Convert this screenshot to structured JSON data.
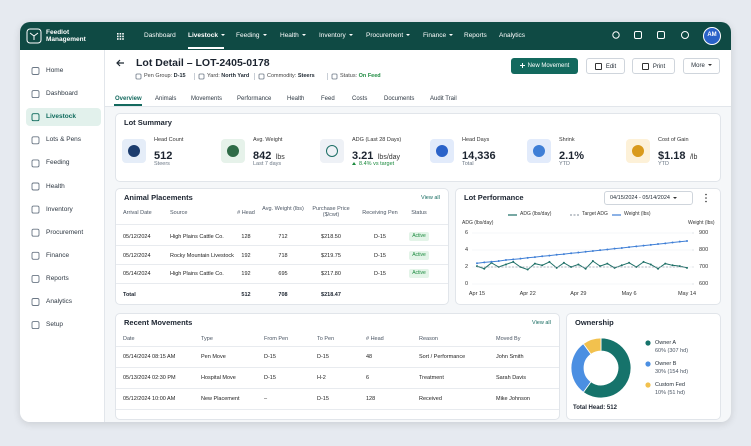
{
  "brand": "Feedlot Management",
  "top_nav": {
    "items": [
      {
        "label": "Dashboard",
        "dropdown": false
      },
      {
        "label": "Livestock",
        "dropdown": true
      },
      {
        "label": "Feeding",
        "dropdown": true
      },
      {
        "label": "Health",
        "dropdown": true
      },
      {
        "label": "Inventory",
        "dropdown": true
      },
      {
        "label": "Procurement",
        "dropdown": true
      },
      {
        "label": "Finance",
        "dropdown": true
      },
      {
        "label": "Reports",
        "dropdown": false
      },
      {
        "label": "Analytics",
        "dropdown": false
      }
    ],
    "active": 1
  },
  "user": {
    "initials": "AM"
  },
  "sidebar": {
    "items": [
      "Home",
      "Dashboard",
      "Livestock",
      "Lots & Pens",
      "Feeding",
      "Health",
      "Inventory",
      "Procurement",
      "Finance",
      "Reports",
      "Analytics",
      "Setup"
    ],
    "active": 2
  },
  "header": {
    "title": "Lot Detail – LOT-2405-0178",
    "meta": [
      {
        "label": "Pen Group:",
        "value": "D-15"
      },
      {
        "label": "Yard:",
        "value": "North Yard"
      },
      {
        "label": "Commodity:",
        "value": "Steers"
      },
      {
        "label": "Status:",
        "value": "On Feed"
      }
    ],
    "actions": [
      "New Movement",
      "Edit",
      "Print",
      "More"
    ]
  },
  "tabs": {
    "items": [
      "Overview",
      "Animals",
      "Movements",
      "Performance",
      "Health",
      "Feed",
      "Costs",
      "Documents",
      "Audit Trail"
    ],
    "active": 0
  },
  "lot_summary": {
    "title": "Lot Summary",
    "kpis": [
      {
        "label": "Head Count",
        "value": "512",
        "note": "Steers"
      },
      {
        "label": "Avg. Weight",
        "value": "842",
        "unit": "lbs",
        "note": "Last 7 days"
      },
      {
        "label": "ADG (Last 28 Days)",
        "value": "3.21",
        "unit": "lbs/day",
        "note": "8.4% vs target",
        "trend": "up"
      },
      {
        "label": "Head Days",
        "value": "14,336",
        "note": "Total"
      },
      {
        "label": "Shrink",
        "value": "2.1%",
        "note": "YTD"
      },
      {
        "label": "Cost of Gain",
        "value": "$1.18",
        "unit": "/lb",
        "note": "YTD"
      }
    ]
  },
  "placements": {
    "title": "Animal Placements",
    "link": "View all",
    "columns": [
      "Arrival Date",
      "Source",
      "# Head",
      "Avg. Weight (lbs)",
      "Purchase Price ($/cwt)",
      "Receiving Pen",
      "Status"
    ],
    "rows": [
      [
        "05/12/2024",
        "High Plains Cattle Co.",
        128,
        712,
        "$218.50",
        "D-15",
        "Active"
      ],
      [
        "05/12/2024",
        "Rocky Mountain Livestock",
        192,
        718,
        "$219.75",
        "D-15",
        "Active"
      ],
      [
        "05/14/2024",
        "High Plains Cattle Co.",
        192,
        695,
        "$217.80",
        "D-15",
        "Active"
      ]
    ],
    "total": {
      "label": "Total",
      "head": 512,
      "avg_weight": 708,
      "price": "$218.47"
    }
  },
  "movements": {
    "title": "Recent Movements",
    "link": "View all",
    "columns": [
      "Date",
      "Type",
      "From Pen",
      "To Pen",
      "# Head",
      "Reason",
      "Moved By"
    ],
    "rows": [
      [
        "05/14/2024 08:15 AM",
        "Pen Move",
        "D-15",
        "D-15",
        48,
        "Sort / Performance",
        "John Smith"
      ],
      [
        "05/13/2024 02:30 PM",
        "Hospital Move",
        "D-15",
        "H-2",
        6,
        "Treatment",
        "Sarah Davis"
      ],
      [
        "05/12/2024 10:00 AM",
        "New Placement",
        "–",
        "D-15",
        128,
        "Received",
        "Mike Johnson"
      ]
    ]
  },
  "chart_data": [
    {
      "type": "line",
      "title": "Lot Performance",
      "date_range": "04/15/2024 - 05/14/2024",
      "categories": [
        "Apr 15",
        null,
        null,
        null,
        null,
        null,
        null,
        "Apr 22",
        null,
        null,
        null,
        null,
        null,
        null,
        "Apr 29",
        null,
        null,
        null,
        null,
        null,
        null,
        "May 6",
        null,
        null,
        null,
        null,
        null,
        null,
        null,
        "May 14"
      ],
      "series": [
        {
          "name": "ADG (lbs/day)",
          "color": "#1d6f66",
          "values": [
            2.1,
            1.8,
            2.5,
            2.0,
            2.3,
            2.6,
            2.0,
            1.7,
            2.4,
            2.2,
            2.6,
            1.9,
            2.5,
            2.0,
            2.3,
            1.8,
            2.7,
            2.1,
            2.4,
            1.9,
            2.2,
            2.5,
            2.0,
            2.6,
            2.3,
            1.8,
            2.4,
            2.2,
            2.1,
            1.9
          ]
        },
        {
          "name": "Target ADG",
          "color": "#9aa3ad",
          "dashed": true,
          "values": [
            2,
            2,
            2,
            2,
            2,
            2,
            2,
            2,
            2,
            2,
            2,
            2,
            2,
            2,
            2,
            2,
            2,
            2,
            2,
            2,
            2,
            2,
            2,
            2,
            2,
            2,
            2,
            2,
            2,
            2
          ]
        },
        {
          "name": "Weight (lbs)",
          "color": "#3f7fd6",
          "axis": "y2",
          "values": [
            722,
            727,
            731,
            735,
            741,
            745,
            749,
            754,
            758,
            763,
            767,
            772,
            776,
            781,
            785,
            790,
            794,
            799,
            803,
            808,
            812,
            817,
            821,
            826,
            830,
            835,
            839,
            844,
            849,
            853
          ]
        }
      ],
      "y_label": "ADG (lbs/day)",
      "y2_label": "Weight (lbs)",
      "ylim": [
        0,
        6
      ],
      "yticks": [
        0,
        2,
        4,
        6
      ],
      "y2lim": [
        600,
        900
      ],
      "y2ticks": [
        600,
        700,
        800,
        900
      ],
      "grid": true
    },
    {
      "type": "pie",
      "title": "Ownership",
      "donut": true,
      "categories": [
        "Owner A",
        "Owner B",
        "Custom Fed"
      ],
      "values": [
        60,
        30,
        10
      ],
      "value_labels": [
        "60%",
        "30%",
        "10%"
      ],
      "details": [
        "(307 hd)",
        "(154 hd)",
        "(51 hd)"
      ],
      "colors": [
        "#16736b",
        "#4b8fe2",
        "#f2c14e"
      ],
      "total_label": "Total Head:",
      "total": 512
    }
  ]
}
